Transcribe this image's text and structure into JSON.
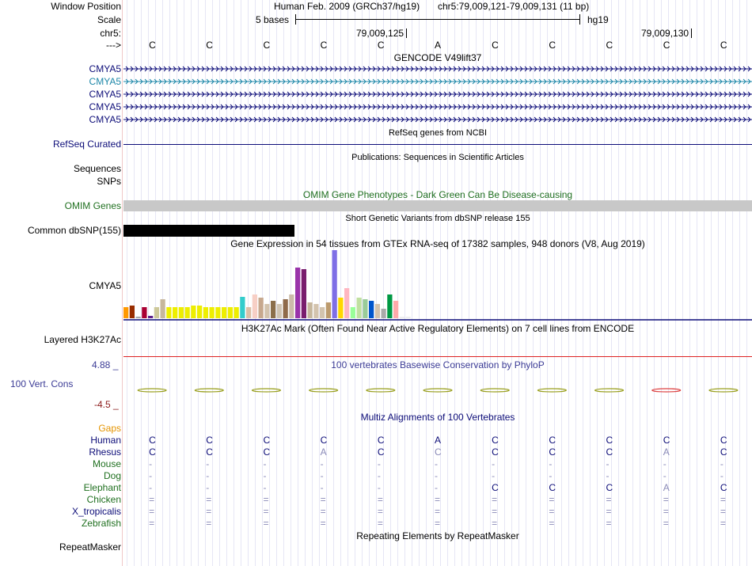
{
  "header": {
    "window_position_label": "Window Position",
    "assembly": "Human Feb. 2009 (GRCh37/hg19)",
    "position": "chr5:79,009,121-79,009,131 (11 bp)",
    "scale_label": "Scale",
    "scale_text": "5 bases",
    "db": "hg19",
    "chrom_label": "chr5:",
    "coord1": "79,009,125",
    "coord2": "79,009,130",
    "strand_label": "--->"
  },
  "bases": [
    "C",
    "C",
    "C",
    "C",
    "C",
    "A",
    "C",
    "C",
    "C",
    "C",
    "C"
  ],
  "gencode": {
    "title": "GENCODE V49lift37",
    "transcripts": [
      {
        "label": "CMYA5",
        "color": "#0c0c78"
      },
      {
        "label": "CMYA5",
        "color": "#1d87a8"
      },
      {
        "label": "CMYA5",
        "color": "#0c0c78"
      },
      {
        "label": "CMYA5",
        "color": "#0c0c78"
      },
      {
        "label": "CMYA5",
        "color": "#0c0c78"
      }
    ]
  },
  "refseq": {
    "title": "RefSeq genes from NCBI",
    "label": "RefSeq Curated"
  },
  "publications": {
    "title": "Publications: Sequences in Scientific Articles",
    "label1": "Sequences",
    "label2": "SNPs"
  },
  "omim": {
    "title": "OMIM Gene Phenotypes - Dark Green Can Be Disease-causing",
    "label": "OMIM Genes"
  },
  "dbsnp": {
    "title": "Short Genetic Variants from dbSNP release 155",
    "label": "Common dbSNP(155)"
  },
  "gtex": {
    "title": "Gene Expression in 54 tissues from GTEx RNA-seq of 17382 samples, 948 donors (V8, Aug 2019)",
    "label": "CMYA5",
    "bars": [
      {
        "v": 14,
        "c": "#ff9900"
      },
      {
        "v": 16,
        "c": "#992d00"
      },
      {
        "v": 2,
        "c": "#aaaaaa"
      },
      {
        "v": 14,
        "c": "#aa0033"
      },
      {
        "v": 3,
        "c": "#5c1e8a"
      },
      {
        "v": 14,
        "c": "#cdc89a"
      },
      {
        "v": 24,
        "c": "#c7b79d"
      },
      {
        "v": 14,
        "c": "#eeee00"
      },
      {
        "v": 14,
        "c": "#eeee00"
      },
      {
        "v": 14,
        "c": "#eeee00"
      },
      {
        "v": 14,
        "c": "#eeee00"
      },
      {
        "v": 16,
        "c": "#eeee00"
      },
      {
        "v": 16,
        "c": "#eeee00"
      },
      {
        "v": 14,
        "c": "#eeee00"
      },
      {
        "v": 14,
        "c": "#eeee00"
      },
      {
        "v": 14,
        "c": "#eeee00"
      },
      {
        "v": 14,
        "c": "#eeee00"
      },
      {
        "v": 14,
        "c": "#eeee00"
      },
      {
        "v": 14,
        "c": "#eeee00"
      },
      {
        "v": 27,
        "c": "#33cccc"
      },
      {
        "v": 14,
        "c": "#dcbfa7"
      },
      {
        "v": 30,
        "c": "#f7cfc5"
      },
      {
        "v": 26,
        "c": "#c7a88e"
      },
      {
        "v": 18,
        "c": "#d3c3ae"
      },
      {
        "v": 22,
        "c": "#8b6e4b"
      },
      {
        "v": 18,
        "c": "#d0c4b3"
      },
      {
        "v": 24,
        "c": "#8f6a4a"
      },
      {
        "v": 30,
        "c": "#ccbbaa"
      },
      {
        "v": 64,
        "c": "#9933aa"
      },
      {
        "v": 62,
        "c": "#7a1d6e"
      },
      {
        "v": 20,
        "c": "#c7b79d"
      },
      {
        "v": 18,
        "c": "#d3c3ae"
      },
      {
        "v": 14,
        "c": "#d3c3ae"
      },
      {
        "v": 20,
        "c": "#bc9a6d"
      },
      {
        "v": 86,
        "c": "#7f6fe6"
      },
      {
        "v": 26,
        "c": "#ffd700"
      },
      {
        "v": 38,
        "c": "#ffb6c1"
      },
      {
        "v": 14,
        "c": "#99ff99"
      },
      {
        "v": 26,
        "c": "#c0e0a0"
      },
      {
        "v": 24,
        "c": "#99cc99"
      },
      {
        "v": 22,
        "c": "#0055cc"
      },
      {
        "v": 18,
        "c": "#d3c3ae"
      },
      {
        "v": 12,
        "c": "#aaaaaa"
      },
      {
        "v": 30,
        "c": "#009944"
      },
      {
        "v": 22,
        "c": "#ffaaaa"
      },
      {
        "v": 2,
        "c": "#eeeeee"
      },
      {
        "v": 2,
        "c": "#eeeeee"
      }
    ]
  },
  "h3k27ac": {
    "title": "H3K27Ac Mark (Often Found Near Active Regulatory Elements) on 7 cell lines from ENCODE",
    "label": "Layered H3K27Ac"
  },
  "phylop": {
    "title": "100 vertebrates Basewise Conservation by PhyloP",
    "label": "100 Vert. Cons",
    "max": "4.88 _",
    "min": "-4.5 _"
  },
  "multiz": {
    "title": "Multiz Alignments of 100 Vertebrates",
    "gaps_label": "Gaps",
    "species": [
      {
        "name": "Human",
        "color": "#0c0c78",
        "bases": [
          "C",
          "C",
          "C",
          "C",
          "C",
          "A",
          "C",
          "C",
          "C",
          "C",
          "C"
        ],
        "bcolors": [
          "#0c0c78",
          "#0c0c78",
          "#0c0c78",
          "#0c0c78",
          "#0c0c78",
          "#0c0c78",
          "#0c0c78",
          "#0c0c78",
          "#0c0c78",
          "#0c0c78",
          "#0c0c78"
        ]
      },
      {
        "name": "Rhesus",
        "color": "#0c0c78",
        "bases": [
          "C",
          "C",
          "C",
          "A",
          "C",
          "C",
          "C",
          "C",
          "C",
          "A",
          "C"
        ],
        "bcolors": [
          "#0c0c78",
          "#0c0c78",
          "#0c0c78",
          "#8a8ab8",
          "#0c0c78",
          "#8a8ab8",
          "#0c0c78",
          "#0c0c78",
          "#0c0c78",
          "#8a8ab8",
          "#0c0c78"
        ]
      },
      {
        "name": "Mouse",
        "color": "#207020",
        "bases": [
          "-",
          "-",
          "-",
          "-",
          "-",
          "-",
          "-",
          "-",
          "-",
          "-",
          "-"
        ],
        "bcolors": []
      },
      {
        "name": "Dog",
        "color": "#207020",
        "bases": [
          "-",
          "-",
          "-",
          "-",
          "-",
          "-",
          "-",
          "-",
          "-",
          "-",
          "-"
        ],
        "bcolors": []
      },
      {
        "name": "Elephant",
        "color": "#207020",
        "bases": [
          "-",
          "-",
          "-",
          "-",
          "-",
          "-",
          "C",
          "C",
          "C",
          "A",
          "C"
        ],
        "bcolors": [
          "",
          "",
          "",
          "",
          "",
          "",
          "#0c0c78",
          "#0c0c78",
          "#0c0c78",
          "#8a8ab8",
          "#0c0c78"
        ]
      },
      {
        "name": "Chicken",
        "color": "#207020",
        "bases": [
          "=",
          "=",
          "=",
          "=",
          "=",
          "=",
          "=",
          "=",
          "=",
          "=",
          "="
        ],
        "bcolors": []
      },
      {
        "name": "X_tropicalis",
        "color": "#0c0c78",
        "bases": [
          "=",
          "=",
          "=",
          "=",
          "=",
          "=",
          "=",
          "=",
          "=",
          "=",
          "="
        ],
        "bcolors": []
      },
      {
        "name": "Zebrafish",
        "color": "#207020",
        "bases": [
          "=",
          "=",
          "=",
          "=",
          "=",
          "=",
          "=",
          "=",
          "=",
          "=",
          "="
        ],
        "bcolors": []
      }
    ]
  },
  "repeatmasker": {
    "title": "Repeating Elements by RepeatMasker",
    "label": "RepeatMasker"
  },
  "colors": {
    "navy": "#0c0c78",
    "teal": "#1d87a8",
    "green": "#207020",
    "phylop": "#3c3c96",
    "gaps": "#e59400",
    "omim_bar": "#c8c8c8",
    "red": "#dd2222"
  }
}
